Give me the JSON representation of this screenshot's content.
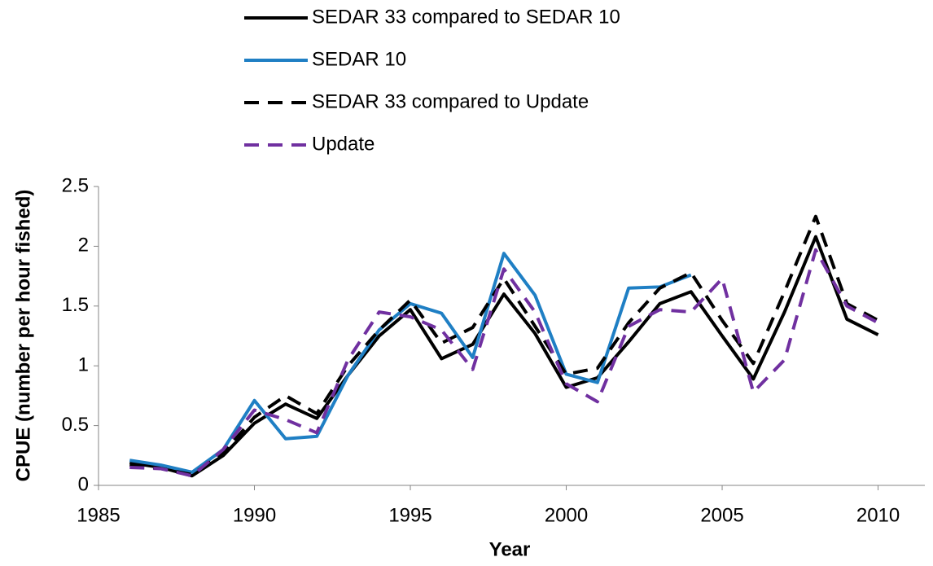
{
  "chart_data": {
    "type": "line",
    "x_label": "Year",
    "y_label": "CPUE (number per hour fished)",
    "x": [
      1986,
      1987,
      1988,
      1989,
      1990,
      1991,
      1992,
      1993,
      1994,
      1995,
      1996,
      1997,
      1998,
      1999,
      2000,
      2001,
      2002,
      2003,
      2004,
      2005,
      2006,
      2007,
      2008,
      2009,
      2010
    ],
    "series": [
      {
        "name": "SEDAR 33 compared to SEDAR 10",
        "color": "#000000",
        "dash": false,
        "values": [
          0.19,
          0.15,
          0.08,
          0.25,
          0.52,
          0.68,
          0.56,
          0.92,
          1.25,
          1.47,
          1.06,
          1.18,
          1.6,
          1.27,
          0.82,
          0.9,
          1.2,
          1.52,
          1.62,
          1.25,
          0.89,
          1.45,
          2.08,
          1.39,
          1.26
        ]
      },
      {
        "name": "SEDAR 10",
        "color": "#1f7fc4",
        "dash": false,
        "values": [
          0.21,
          0.17,
          0.11,
          0.3,
          0.71,
          0.39,
          0.41,
          0.92,
          1.3,
          1.52,
          1.44,
          1.07,
          1.94,
          1.59,
          0.93,
          0.86,
          1.65,
          1.66,
          1.76,
          null,
          null,
          null,
          null,
          null,
          null
        ]
      },
      {
        "name": "SEDAR 33 compared to Update",
        "color": "#000000",
        "dash": true,
        "values": [
          0.17,
          0.14,
          0.09,
          0.27,
          0.57,
          0.75,
          0.6,
          1.0,
          1.3,
          1.55,
          1.19,
          1.32,
          1.73,
          1.33,
          0.93,
          0.98,
          1.36,
          1.65,
          1.78,
          1.38,
          1.02,
          1.62,
          2.25,
          1.52,
          1.38
        ]
      },
      {
        "name": "Update",
        "color": "#7030a0",
        "dash": true,
        "values": [
          0.15,
          0.14,
          0.08,
          0.3,
          0.63,
          0.55,
          0.44,
          1.05,
          1.45,
          1.41,
          1.3,
          0.97,
          1.81,
          1.45,
          0.85,
          0.7,
          1.33,
          1.47,
          1.45,
          1.73,
          0.78,
          1.05,
          1.97,
          1.5,
          1.36
        ]
      }
    ],
    "xlim": [
      1985,
      2011.5
    ],
    "xticks": [
      1985,
      1990,
      1995,
      2000,
      2005,
      2010
    ],
    "ylim": [
      0,
      2.5
    ],
    "yticks": [
      0,
      0.5,
      1,
      1.5,
      2,
      2.5
    ],
    "legend": "top"
  }
}
